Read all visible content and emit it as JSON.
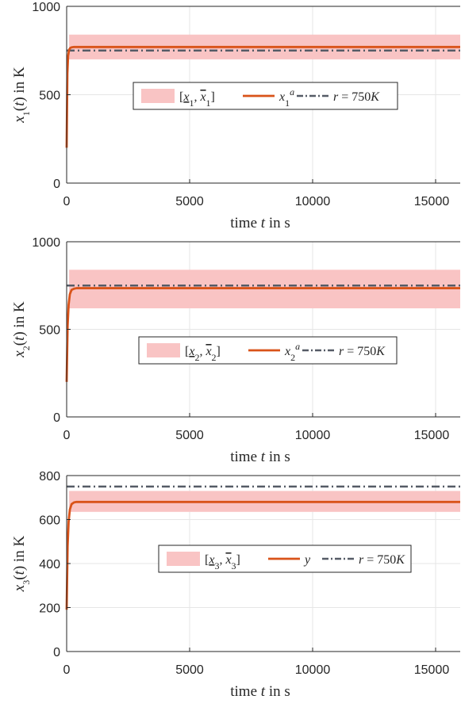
{
  "colors": {
    "band": "#f9c4c4",
    "state": "#d95319",
    "reference": "#555b66",
    "grid": "#e6e6e6",
    "axis": "#262626"
  },
  "chart_data": [
    {
      "type": "line",
      "xlabel": "time t in s",
      "ylabel": "x1(t) in K",
      "xlim": [
        0,
        16000
      ],
      "ylim": [
        0,
        1000
      ],
      "xticks": [
        "0",
        "5000",
        "10000",
        "15000"
      ],
      "yticks": [
        "0",
        "500",
        "1000"
      ],
      "grid": true,
      "legend_position": "center-right",
      "band": {
        "name": "[x1, x̄1]",
        "lower": 700,
        "upper": 840,
        "start": 100
      },
      "series": [
        {
          "name": "x1^a",
          "x": [
            0,
            30,
            60,
            100,
            150,
            200,
            300,
            16000
          ],
          "y": [
            200,
            620,
            720,
            755,
            765,
            768,
            770,
            770
          ]
        },
        {
          "name": "r = 750K",
          "x": [
            0,
            16000
          ],
          "y": [
            750,
            750
          ]
        }
      ],
      "legend": [
        "[x1, x̄1]",
        "x1^a",
        "r = 750K"
      ]
    },
    {
      "type": "line",
      "xlabel": "time t in s",
      "ylabel": "x2(t) in K",
      "xlim": [
        0,
        16000
      ],
      "ylim": [
        0,
        1000
      ],
      "xticks": [
        "0",
        "5000",
        "10000",
        "15000"
      ],
      "yticks": [
        "0",
        "500",
        "1000"
      ],
      "grid": true,
      "legend_position": "center-right",
      "band": {
        "name": "[x2, x̄2]",
        "lower": 620,
        "upper": 840,
        "start": 100
      },
      "series": [
        {
          "name": "x2^a",
          "x": [
            0,
            40,
            80,
            130,
            200,
            300,
            400,
            16000
          ],
          "y": [
            200,
            520,
            640,
            700,
            725,
            732,
            735,
            735
          ]
        },
        {
          "name": "r = 750K",
          "x": [
            0,
            16000
          ],
          "y": [
            750,
            750
          ]
        }
      ],
      "legend": [
        "[x2, x̄2]",
        "x2^a",
        "r = 750K"
      ]
    },
    {
      "type": "line",
      "xlabel": "time t in s",
      "ylabel": "x3(t) in K",
      "xlim": [
        0,
        16000
      ],
      "ylim": [
        0,
        800
      ],
      "xticks": [
        "0",
        "5000",
        "10000",
        "15000"
      ],
      "yticks": [
        "0",
        "200",
        "400",
        "600",
        "800"
      ],
      "grid": true,
      "legend_position": "center-right",
      "band": {
        "name": "[x3, x̄3]",
        "lower": 635,
        "upper": 730,
        "start": 100
      },
      "series": [
        {
          "name": "y",
          "x": [
            0,
            40,
            80,
            130,
            200,
            300,
            400,
            16000
          ],
          "y": [
            190,
            480,
            590,
            645,
            670,
            678,
            680,
            680
          ]
        },
        {
          "name": "r = 750K",
          "x": [
            0,
            16000
          ],
          "y": [
            750,
            750
          ]
        }
      ],
      "legend": [
        "[x3, x̄3]",
        "y",
        "r = 750K"
      ]
    }
  ]
}
